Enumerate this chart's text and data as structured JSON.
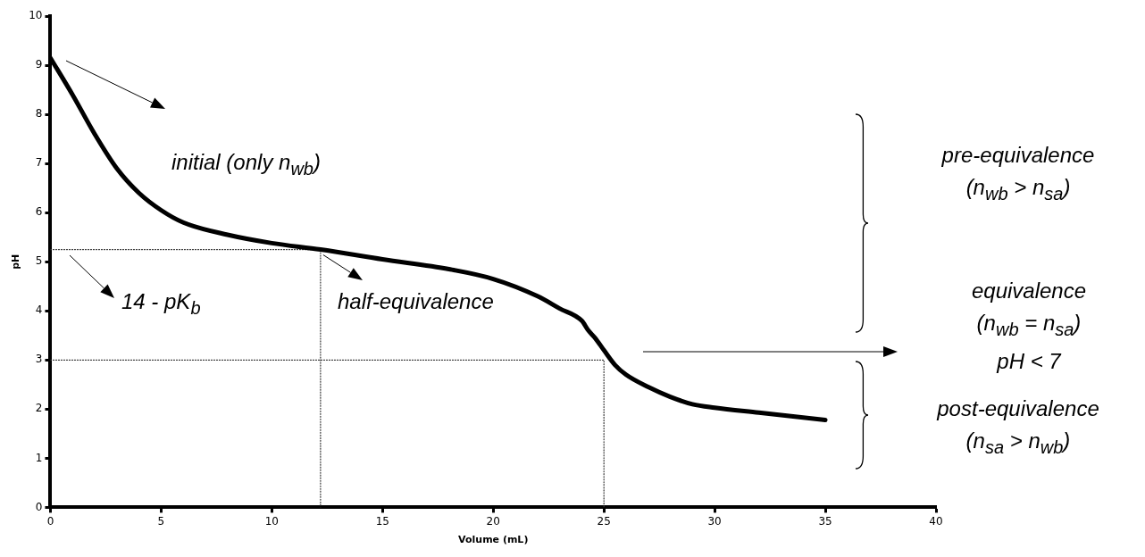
{
  "chart_data": {
    "type": "line",
    "xlabel": "Volume (mL)",
    "ylabel": "pH",
    "xlim": [
      0,
      40
    ],
    "xticks": [
      0,
      5,
      10,
      15,
      20,
      25,
      30,
      35,
      40
    ],
    "ylim": [
      0,
      10
    ],
    "yticks": [
      0,
      1,
      2,
      3,
      4,
      5,
      6,
      7,
      8,
      9,
      10
    ],
    "grid": false,
    "legend": false,
    "marker": "none",
    "series": [
      {
        "color": "#000000",
        "line_style": "solid",
        "x": [
          0,
          1,
          2,
          3,
          4,
          5,
          6,
          8,
          10,
          12.2,
          15,
          18,
          20,
          22,
          23,
          24,
          24.3,
          24.6,
          25,
          25.5,
          26,
          27,
          28,
          29,
          30,
          32,
          35
        ],
        "values": [
          9.15,
          8.4,
          7.6,
          6.9,
          6.4,
          6.05,
          5.8,
          5.55,
          5.38,
          5.25,
          5.05,
          4.85,
          4.65,
          4.3,
          4.05,
          3.8,
          3.6,
          3.45,
          3.2,
          2.9,
          2.7,
          2.45,
          2.25,
          2.1,
          2.03,
          1.93,
          1.78
        ]
      },
      {
        "color": "#333333",
        "line_style": "dotted",
        "x": [
          0,
          12.2,
          12.2
        ],
        "values": [
          5.25,
          5.25,
          0
        ]
      },
      {
        "color": "#333333",
        "line_style": "dotted",
        "x": [
          0,
          25,
          25
        ],
        "values": [
          3,
          3,
          0
        ]
      }
    ],
    "annotations": [
      "initial (only n$_{wb}$)",
      "14 - pK$_{b}$",
      {
        "text": "half-equivalence",
        "x": 12.2,
        "y": 5.25
      },
      "pre-equivalence\n(n$_{wb}$ > n$_{sa}$)",
      "equivalence\n(n$_{wb}$ = n$_{sa}$)\npH < 7",
      "post-equivalence\n(n$_{sa}$ > n$_{wb}$)"
    ]
  }
}
